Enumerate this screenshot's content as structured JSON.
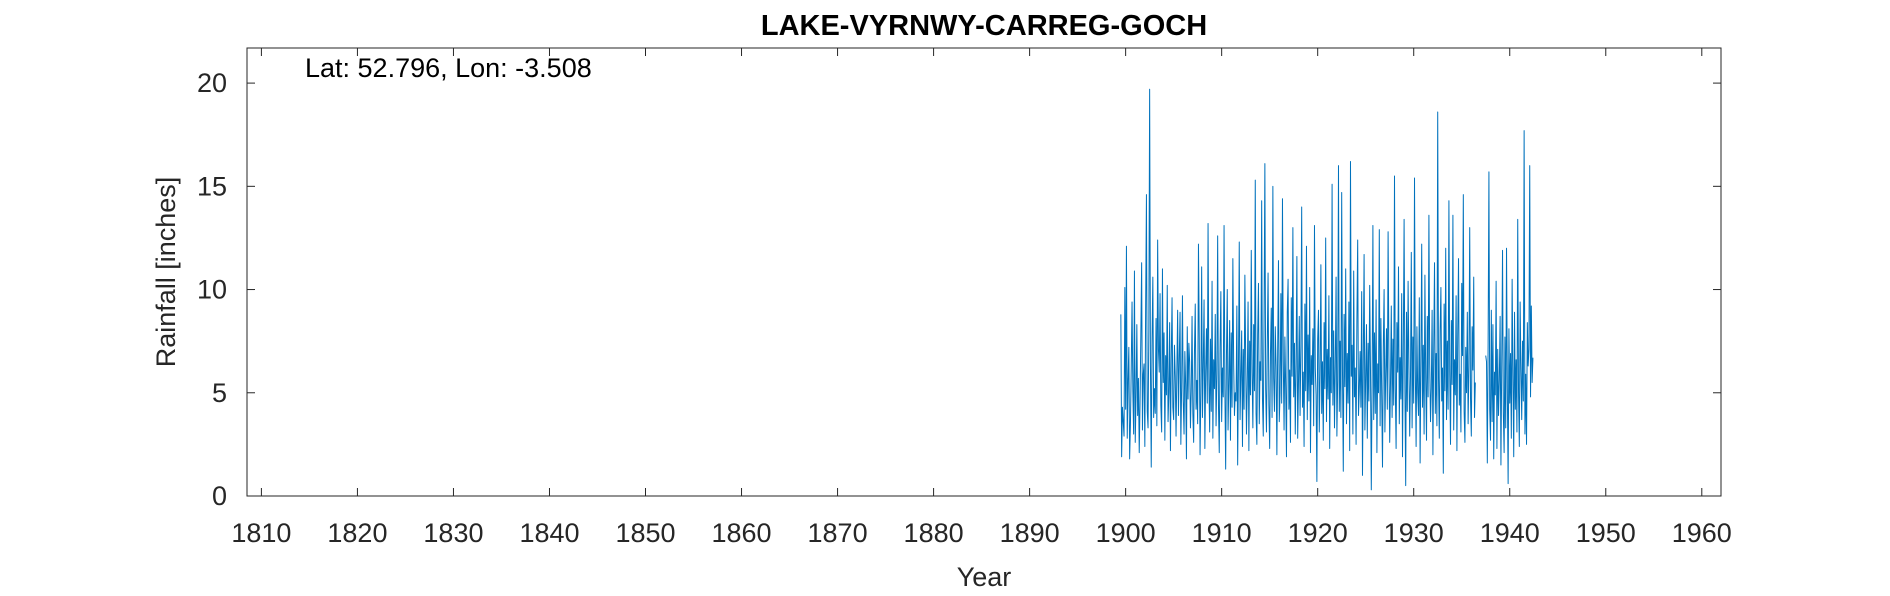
{
  "chart_data": {
    "type": "line",
    "title": "LAKE-VYRNWY-CARREG-GOCH",
    "annotation": "Lat: 52.796, Lon: -3.508",
    "xlabel": "Year",
    "ylabel": "Rainfall [inches]",
    "xlim": [
      1808.5,
      1962
    ],
    "ylim": [
      0,
      21.7
    ],
    "xticks": [
      1810,
      1820,
      1830,
      1840,
      1850,
      1860,
      1870,
      1880,
      1890,
      1900,
      1910,
      1920,
      1930,
      1940,
      1950,
      1960
    ],
    "yticks": [
      0,
      5,
      10,
      15,
      20
    ],
    "grid": false,
    "line_color": "#0072BD",
    "series": [
      {
        "x_start": 1899.5,
        "x_step_years": 0.08333,
        "values": [
          8.8,
          1.9,
          4.3,
          3.6,
          2.9,
          10.1,
          4.2,
          12.1,
          2.8,
          5.6,
          7.2,
          1.8,
          3.5,
          6.2,
          9.4,
          5.1,
          3.0,
          10.9,
          2.6,
          4.8,
          8.3,
          3.9,
          5.7,
          2.1,
          4.5,
          7.8,
          11.3,
          3.2,
          5.9,
          6.4,
          2.4,
          9.1,
          14.6,
          4.1,
          3.3,
          8.0,
          19.7,
          6.3,
          1.4,
          7.5,
          10.6,
          3.8,
          5.2,
          4.0,
          8.6,
          3.4,
          12.4,
          7.1,
          6.0,
          9.8,
          4.4,
          3.1,
          11.0,
          5.5,
          7.9,
          2.7,
          6.8,
          4.9,
          10.2,
          3.6,
          5.0,
          8.4,
          2.2,
          6.7,
          9.6,
          4.3,
          3.7,
          7.3,
          5.8,
          2.9,
          6.1,
          9.0,
          3.9,
          6.6,
          8.9,
          2.5,
          5.3,
          9.7,
          4.6,
          3.0,
          7.0,
          5.4,
          1.8,
          8.2,
          4.7,
          7.4,
          6.5,
          3.3,
          5.1,
          8.7,
          4.0,
          2.6,
          6.9,
          9.3,
          4.2,
          5.6,
          3.5,
          12.2,
          7.7,
          2.0,
          5.0,
          11.1,
          3.8,
          6.3,
          9.5,
          2.3,
          6.0,
          8.1,
          4.5,
          13.2,
          5.7,
          3.1,
          7.6,
          4.1,
          10.4,
          2.8,
          6.6,
          5.2,
          8.8,
          3.4,
          5.9,
          12.6,
          4.4,
          2.1,
          7.2,
          9.9,
          3.6,
          6.2,
          4.8,
          13.1,
          5.3,
          1.3,
          6.8,
          10.0,
          3.2,
          5.5,
          8.5,
          2.7,
          7.9,
          4.3,
          11.5,
          6.4,
          3.9,
          5.0,
          4.6,
          9.2,
          1.5,
          6.1,
          12.3,
          3.7,
          5.8,
          8.0,
          2.4,
          7.1,
          4.2,
          10.7,
          6.7,
          3.0,
          5.4,
          9.4,
          2.2,
          7.5,
          4.9,
          11.9,
          6.0,
          3.3,
          8.3,
          5.1,
          15.3,
          4.0,
          2.5,
          7.8,
          10.3,
          3.5,
          6.5,
          5.6,
          14.3,
          4.7,
          2.9,
          8.6,
          16.1,
          5.2,
          3.1,
          7.3,
          10.8,
          4.4,
          2.3,
          6.9,
          9.1,
          3.8,
          15.0,
          5.7,
          4.1,
          8.2,
          6.3,
          2.0,
          7.0,
          11.4,
          3.6,
          5.0,
          9.8,
          4.5,
          14.4,
          6.6,
          3.2,
          7.7,
          5.3,
          1.9,
          8.9,
          10.5,
          4.2,
          6.1,
          2.6,
          9.6,
          5.8,
          13.0,
          4.8,
          7.4,
          3.0,
          6.4,
          11.6,
          2.8,
          5.5,
          8.7,
          3.9,
          7.2,
          14.0,
          4.3,
          6.0,
          2.4,
          9.3,
          5.1,
          12.1,
          3.7,
          7.8,
          4.6,
          10.1,
          2.1,
          6.8,
          5.4,
          8.1,
          3.4,
          13.1,
          6.2,
          4.9,
          0.7,
          7.6,
          9.0,
          3.1,
          5.9,
          11.2,
          4.0,
          6.5,
          2.7,
          8.4,
          5.2,
          12.5,
          3.6,
          7.1,
          4.7,
          9.7,
          2.3,
          6.7,
          5.0,
          15.1,
          4.4,
          8.0,
          3.3,
          6.3,
          10.6,
          2.9,
          5.6,
          16.0,
          4.1,
          7.5,
          3.8,
          14.7,
          6.0,
          1.2,
          8.8,
          5.3,
          11.0,
          3.5,
          6.9,
          4.5,
          9.4,
          2.2,
          16.2,
          5.8,
          7.3,
          3.0,
          10.9,
          4.8,
          6.2,
          2.5,
          8.5,
          12.4,
          3.9,
          5.1,
          7.0,
          4.3,
          9.9,
          1.0,
          6.6,
          11.7,
          3.2,
          5.7,
          8.3,
          2.8,
          7.4,
          4.6,
          10.2,
          6.1,
          0.3,
          5.4,
          13.1,
          3.7,
          7.9,
          4.0,
          9.5,
          2.1,
          6.4,
          5.0,
          12.9,
          3.4,
          8.6,
          4.9,
          1.4,
          7.2,
          10.0,
          3.1,
          5.9,
          8.1,
          4.2,
          12.8,
          6.8,
          2.6,
          5.5,
          9.2,
          3.8,
          7.6,
          4.4,
          15.5,
          5.2,
          2.3,
          8.4,
          6.0,
          11.1,
          3.5,
          6.7,
          4.7,
          9.8,
          1.9,
          7.1,
          13.4,
          5.3,
          0.5,
          8.9,
          4.1,
          10.4,
          6.3,
          2.9,
          5.8,
          11.8,
          3.3,
          7.7,
          4.5,
          15.4,
          6.1,
          2.4,
          8.2,
          5.0,
          3.9,
          9.6,
          1.6,
          6.5,
          12.2,
          4.3,
          7.3,
          3.0,
          10.7,
          5.6,
          2.7,
          8.7,
          4.8,
          13.6,
          6.4,
          3.6,
          5.2,
          9.0,
          2.0,
          7.0,
          11.3,
          4.0,
          6.9,
          3.4,
          18.6,
          5.7,
          2.8,
          8.0,
          10.1,
          4.6,
          6.2,
          1.1,
          9.3,
          5.1,
          12.0,
          3.7,
          7.5,
          4.2,
          14.3,
          6.0,
          2.5,
          8.5,
          5.4,
          13.6,
          3.2,
          6.6,
          4.9,
          9.7,
          2.2,
          7.8,
          11.5,
          4.4,
          5.9,
          3.1,
          10.3,
          6.8,
          14.6,
          4.1,
          2.6,
          7.2,
          5.0,
          8.9,
          3.5,
          6.3,
          13.0,
          4.7,
          2.9,
          8.2,
          6.1,
          10.6,
          3.8,
          5.5,
          null,
          null,
          null,
          null,
          null,
          null,
          null,
          null,
          null,
          null,
          null,
          null,
          6.8,
          6.5,
          1.6,
          7.4,
          15.7,
          4.2,
          2.7,
          9.0,
          3.6,
          8.3,
          1.8,
          6.0,
          4.9,
          10.4,
          2.3,
          7.1,
          3.9,
          5.6,
          8.7,
          1.5,
          6.4,
          11.9,
          4.0,
          2.1,
          7.7,
          3.3,
          12.0,
          5.2,
          0.6,
          8.1,
          4.5,
          6.9,
          2.8,
          10.5,
          5.8,
          1.9,
          8.9,
          4.2,
          6.6,
          3.1,
          13.4,
          5.0,
          2.4,
          9.4,
          6.1,
          3.7,
          7.5,
          4.6,
          17.7,
          3.0,
          5.9,
          2.5,
          8.4,
          6.3,
          7.1,
          16.0,
          4.8,
          9.2,
          5.5,
          6.7
        ]
      }
    ]
  }
}
